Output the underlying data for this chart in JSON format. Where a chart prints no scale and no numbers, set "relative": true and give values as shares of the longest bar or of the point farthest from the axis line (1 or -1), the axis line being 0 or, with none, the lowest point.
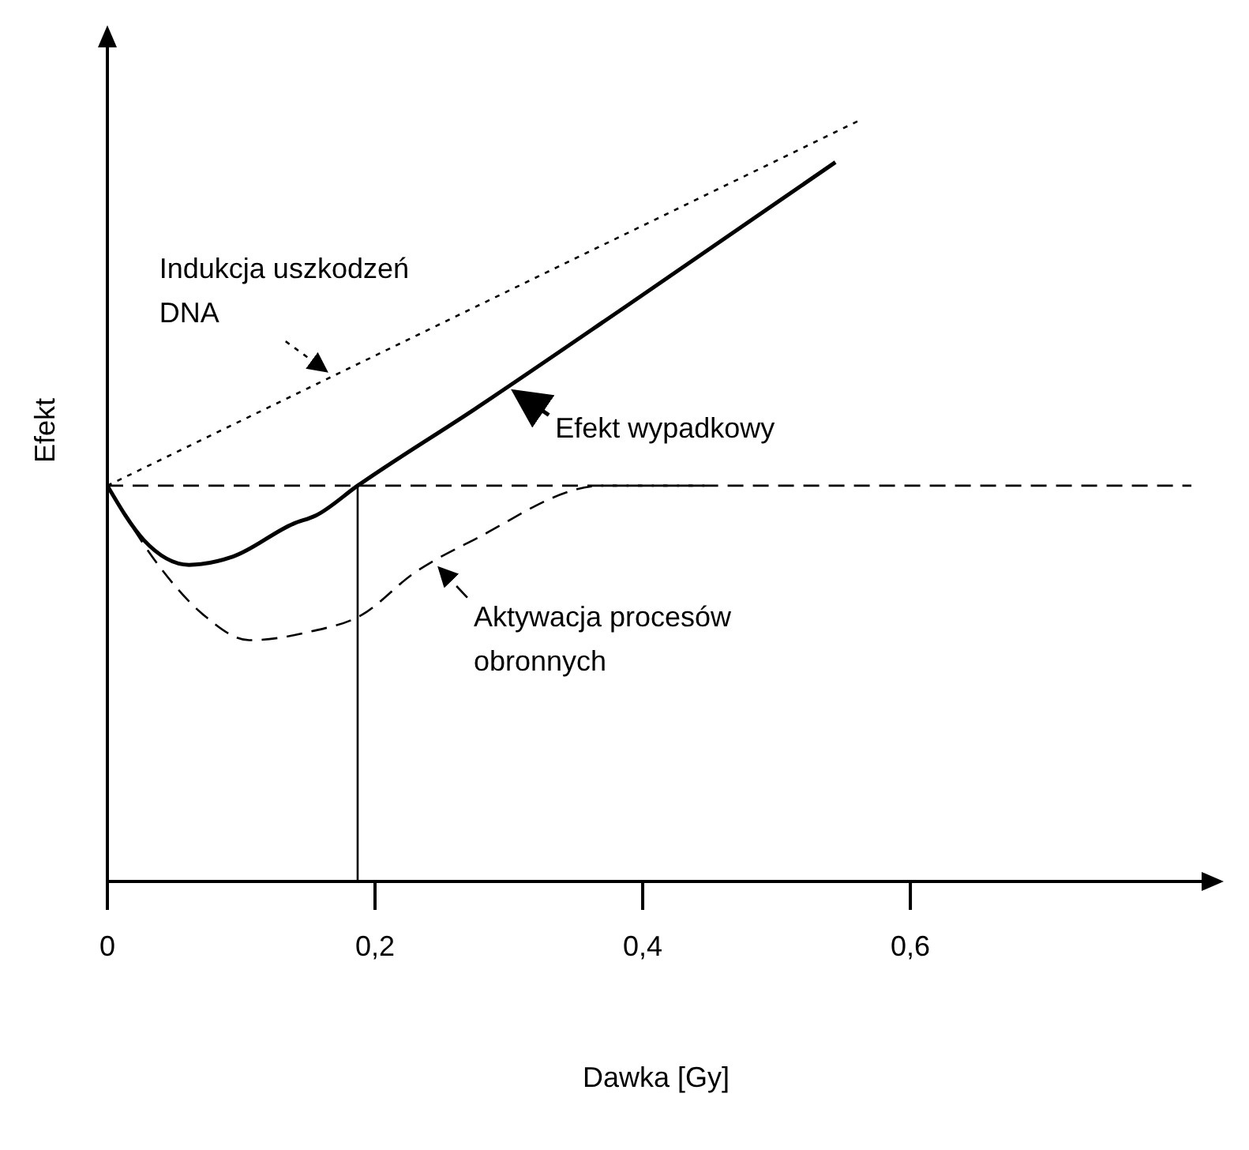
{
  "chart_data": {
    "type": "line",
    "relative": true,
    "xlabel": "Dawka [Gy]",
    "ylabel": "Efekt",
    "xlim": [
      0,
      0.82
    ],
    "xticks": [
      0,
      {
        "value": 0.2,
        "label": "0,2"
      },
      {
        "value": 0.4,
        "label": "0,4"
      },
      {
        "value": 0.6,
        "label": "0,6"
      }
    ],
    "marker": "none",
    "legend": "center",
    "series": [
      {
        "name": "Indukcja uszkodzeń DNA",
        "color": "#000000",
        "line_style": "dotted",
        "x": [
          0,
          0.562
        ],
        "values": [
          0.52,
          1
        ]
      },
      {
        "name": "Efekt wypadkowy",
        "color": "#000000",
        "line_style": "solid",
        "x": [
          0,
          0.027,
          0.061,
          0.094,
          0.139,
          0.156,
          0.187,
          0.274,
          0.387,
          0.544
        ],
        "values": [
          0.52,
          0.449,
          0.416,
          0.427,
          0.47,
          0.481,
          0.52,
          0.62,
          0.755,
          0.945
        ]
      },
      {
        "name": "Aktywacja procesów obronnych",
        "color": "#000000",
        "line_style": "dashed",
        "x": [
          0,
          0.038,
          0.072,
          0.106,
          0.151,
          0.19,
          0.229,
          0.274,
          0.37,
          0.81
        ],
        "values": [
          0.52,
          0.416,
          0.35,
          0.317,
          0.328,
          0.35,
          0.405,
          0.449,
          0.52,
          0.52
        ]
      },
      {
        "color": "#000000",
        "line_style": "dashed",
        "x": [
          0,
          0.45
        ],
        "values": [
          0.52,
          0.52
        ]
      },
      {
        "color": "#000000",
        "line_style": "solid",
        "x": [
          0.187,
          0.187
        ],
        "values": [
          0,
          0.52
        ]
      }
    ]
  }
}
